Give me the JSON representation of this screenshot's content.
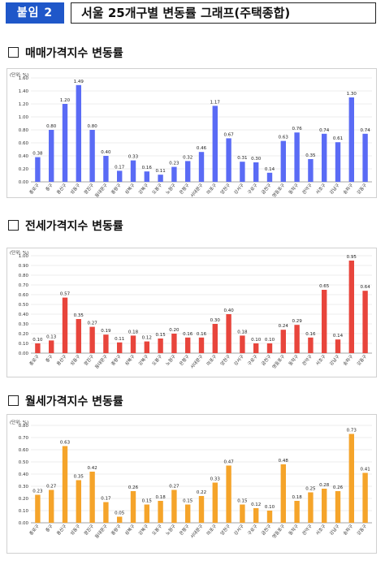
{
  "header": {
    "badge": "붙임 2",
    "title": "서울 25개구별 변동률 그래프(주택종합)"
  },
  "districts": [
    "종로구",
    "중구",
    "용산구",
    "성동구",
    "광진구",
    "동대문구",
    "중랑구",
    "성북구",
    "강북구",
    "도봉구",
    "노원구",
    "은평구",
    "서대문구",
    "마포구",
    "양천구",
    "강서구",
    "구로구",
    "금천구",
    "영등포구",
    "동작구",
    "관악구",
    "서초구",
    "강남구",
    "송파구",
    "강동구"
  ],
  "colors": {
    "sale": "#5a6bf5",
    "jeonse": "#e8453c",
    "monthly": "#f5a42a"
  },
  "chart_data": [
    {
      "type": "bar",
      "title": "매매가격지수 변동률",
      "unit": "(단위: %)",
      "ylim": [
        0,
        1.6
      ],
      "yticks": [
        "0.00",
        "0.20",
        "0.40",
        "0.60",
        "0.80",
        "1.00",
        "1.20",
        "1.40",
        "1.60"
      ],
      "values": [
        0.38,
        0.8,
        1.2,
        1.49,
        0.8,
        0.4,
        0.17,
        0.33,
        0.16,
        0.11,
        0.23,
        0.32,
        0.46,
        1.17,
        0.67,
        0.31,
        0.3,
        0.14,
        0.63,
        0.76,
        0.35,
        0.74,
        0.61,
        1.3,
        0.74
      ]
    },
    {
      "type": "bar",
      "title": "전세가격지수 변동률",
      "unit": "(단위: %)",
      "ylim": [
        0,
        1.0
      ],
      "yticks": [
        "0.00",
        "0.10",
        "0.20",
        "0.30",
        "0.40",
        "0.50",
        "0.60",
        "0.70",
        "0.80",
        "0.90",
        "1.00"
      ],
      "values": [
        0.1,
        0.13,
        0.57,
        0.35,
        0.27,
        0.19,
        0.11,
        0.18,
        0.12,
        0.15,
        0.2,
        0.16,
        0.16,
        0.3,
        0.4,
        0.18,
        0.1,
        0.1,
        0.24,
        0.29,
        0.16,
        0.65,
        0.14,
        0.95,
        0.64
      ]
    },
    {
      "type": "bar",
      "title": "월세가격지수 변동률",
      "unit": "(단위: %)",
      "ylim": [
        0,
        0.8
      ],
      "yticks": [
        "0.00",
        "0.10",
        "0.20",
        "0.30",
        "0.40",
        "0.50",
        "0.60",
        "0.70",
        "0.80"
      ],
      "values": [
        0.23,
        0.27,
        0.63,
        0.35,
        0.42,
        0.17,
        0.05,
        0.26,
        0.15,
        0.18,
        0.27,
        0.15,
        0.22,
        0.33,
        0.47,
        0.15,
        0.12,
        0.1,
        0.48,
        0.18,
        0.25,
        0.28,
        0.26,
        0.73,
        0.41
      ]
    }
  ]
}
